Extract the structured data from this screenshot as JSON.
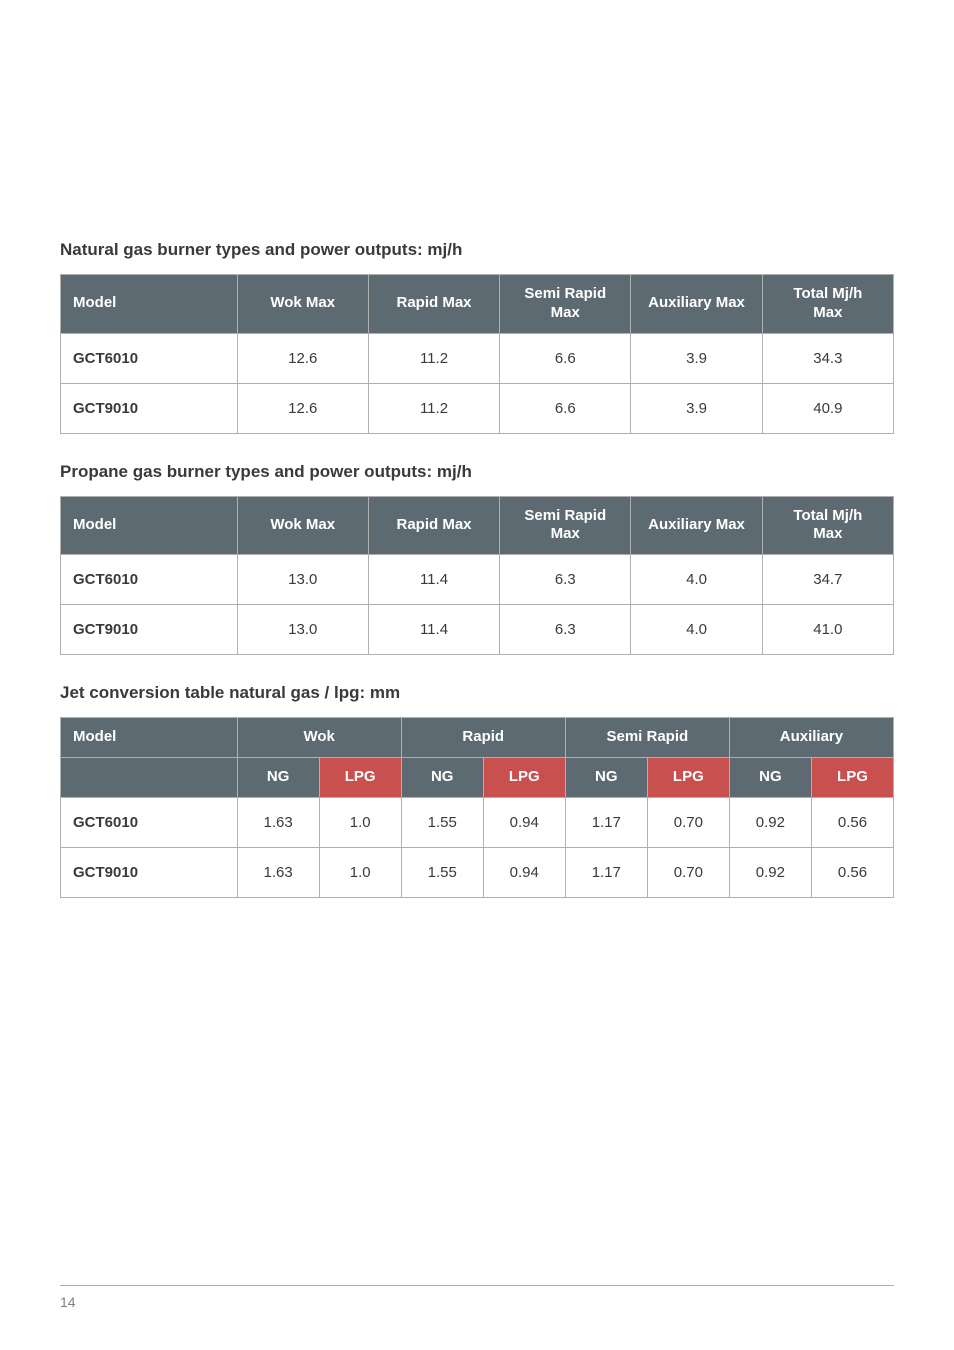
{
  "colors": {
    "header_dark": "#5e6a71",
    "header_red": "#c8504e",
    "border": "#b0b0b0",
    "text": "#3a3a3a",
    "footer_text": "#808080"
  },
  "table1": {
    "title": "Natural gas burner types and power outputs: mj/h",
    "headers": [
      "Model",
      "Wok Max",
      "Rapid Max",
      "Semi Rapid Max",
      "Auxiliary Max",
      "Total Mj/h Max"
    ],
    "rows": [
      [
        "GCT6010",
        "12.6",
        "11.2",
        "6.6",
        "3.9",
        "34.3"
      ],
      [
        "GCT9010",
        "12.6",
        "11.2",
        "6.6",
        "3.9",
        "40.9"
      ]
    ]
  },
  "table2": {
    "title": "Propane gas burner types and power outputs: mj/h",
    "headers": [
      "Model",
      "Wok Max",
      "Rapid Max",
      "Semi Rapid Max",
      "Auxiliary Max",
      "Total Mj/h Max"
    ],
    "rows": [
      [
        "GCT6010",
        "13.0",
        "11.4",
        "6.3",
        "4.0",
        "34.7"
      ],
      [
        "GCT9010",
        "13.0",
        "11.4",
        "6.3",
        "4.0",
        "41.0"
      ]
    ]
  },
  "table3": {
    "title": "Jet conversion table natural gas / lpg: mm",
    "group_headers": [
      "Model",
      "Wok",
      "Rapid",
      "Semi Rapid",
      "Auxiliary"
    ],
    "sub_header_label": {
      "ng": "NG",
      "lpg": "LPG"
    },
    "rows": [
      [
        "GCT6010",
        "1.63",
        "1.0",
        "1.55",
        "0.94",
        "1.17",
        "0.70",
        "0.92",
        "0.56"
      ],
      [
        "GCT9010",
        "1.63",
        "1.0",
        "1.55",
        "0.94",
        "1.17",
        "0.70",
        "0.92",
        "0.56"
      ]
    ],
    "col_widths_pct": [
      21.2,
      9.85,
      9.85,
      9.85,
      9.85,
      9.85,
      9.85,
      9.85,
      9.85
    ]
  },
  "footer": {
    "page_number": "14"
  }
}
